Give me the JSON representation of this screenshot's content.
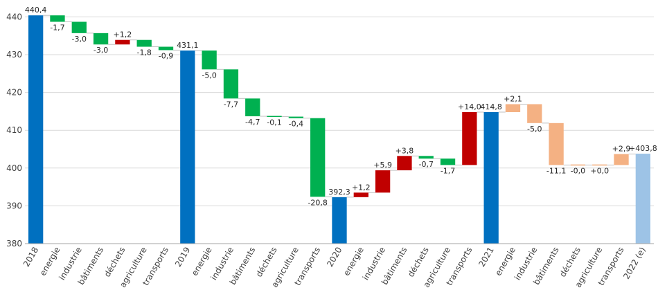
{
  "chart_data": {
    "type": "bar",
    "subtype": "waterfall",
    "title": "",
    "xlabel": "",
    "ylabel": "",
    "ylim": [
      380,
      443
    ],
    "yticks": [
      380,
      390,
      400,
      410,
      420,
      430,
      440
    ],
    "grid": "horizontal",
    "colors": {
      "total": "#0070c0",
      "total_estimate": "#9dc3e6",
      "decrease": "#00b050",
      "increase": "#c00000",
      "estimate_change": "#f4b183"
    },
    "items": [
      {
        "category": "2018",
        "kind": "total",
        "value": 440.4,
        "label": "440,4"
      },
      {
        "category": "energie",
        "kind": "decrease",
        "value": -1.7,
        "label": "-1,7"
      },
      {
        "category": "industrie",
        "kind": "decrease",
        "value": -3.0,
        "label": "-3,0"
      },
      {
        "category": "bâtiments",
        "kind": "decrease",
        "value": -3.0,
        "label": "-3,0"
      },
      {
        "category": "déchets",
        "kind": "increase",
        "value": 1.2,
        "label": "+1,2"
      },
      {
        "category": "agriculture",
        "kind": "decrease",
        "value": -1.8,
        "label": "-1,8"
      },
      {
        "category": "transports",
        "kind": "decrease",
        "value": -0.9,
        "label": "-0,9"
      },
      {
        "category": "2019",
        "kind": "total",
        "value": 431.1,
        "label": "431,1"
      },
      {
        "category": "energie",
        "kind": "decrease",
        "value": -5.0,
        "label": "-5,0"
      },
      {
        "category": "industrie",
        "kind": "decrease",
        "value": -7.7,
        "label": "-7,7"
      },
      {
        "category": "bâtiments",
        "kind": "decrease",
        "value": -4.7,
        "label": "-4,7"
      },
      {
        "category": "déchets",
        "kind": "decrease",
        "value": -0.1,
        "label": "-0,1"
      },
      {
        "category": "agriculture",
        "kind": "decrease",
        "value": -0.4,
        "label": "-0,4"
      },
      {
        "category": "transports",
        "kind": "decrease",
        "value": -20.8,
        "label": "-20,8"
      },
      {
        "category": "2020",
        "kind": "total",
        "value": 392.3,
        "label": "392,3"
      },
      {
        "category": "energie",
        "kind": "increase",
        "value": 1.2,
        "label": "+1,2"
      },
      {
        "category": "industrie",
        "kind": "increase",
        "value": 5.9,
        "label": "+5,9"
      },
      {
        "category": "bâtiments",
        "kind": "increase",
        "value": 3.8,
        "label": "+3,8"
      },
      {
        "category": "déchets",
        "kind": "decrease",
        "value": -0.7,
        "label": "-0,7"
      },
      {
        "category": "agriculture",
        "kind": "decrease",
        "value": -1.7,
        "label": "-1,7"
      },
      {
        "category": "transports",
        "kind": "increase",
        "value": 14.0,
        "label": "+14,0"
      },
      {
        "category": "2021",
        "kind": "total",
        "value": 414.8,
        "label": "414,8"
      },
      {
        "category": "energie",
        "kind": "estimate_change",
        "value": 2.1,
        "label": "+2,1"
      },
      {
        "category": "industrie",
        "kind": "estimate_change",
        "value": -5.0,
        "label": "-5,0"
      },
      {
        "category": "bâtiments",
        "kind": "estimate_change",
        "value": -11.1,
        "label": "-11,1"
      },
      {
        "category": "déchets",
        "kind": "estimate_change",
        "value": 0.0,
        "label": "-0,0"
      },
      {
        "category": "agriculture",
        "kind": "estimate_change",
        "value": 0.0,
        "label": "+0,0"
      },
      {
        "category": "transports",
        "kind": "estimate_change",
        "value": 2.9,
        "label": "+2,9"
      },
      {
        "category": "2022 (e)",
        "kind": "total_estimate",
        "value": 403.8,
        "label": "+403,8"
      }
    ]
  }
}
